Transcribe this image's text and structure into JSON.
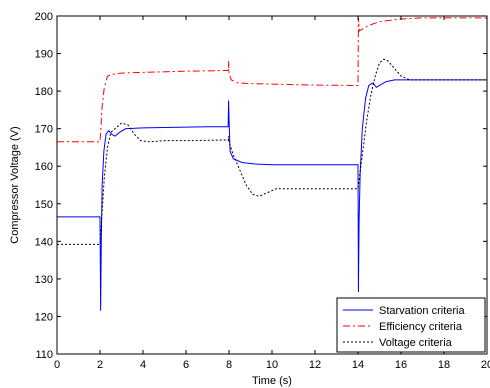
{
  "chart_data": {
    "type": "line",
    "title": "",
    "xlabel": "Time (s)",
    "ylabel": "Compressor Voltage (V)",
    "xlim": [
      0,
      20
    ],
    "ylim": [
      110,
      200
    ],
    "xticks": [
      0,
      2,
      4,
      6,
      8,
      10,
      12,
      14,
      16,
      18,
      20
    ],
    "yticks": [
      110,
      120,
      130,
      140,
      150,
      160,
      170,
      180,
      190,
      200
    ],
    "grid": false,
    "legend_position": "bottom-right",
    "series": [
      {
        "name": "Starvation criteria",
        "color": "#0000ff",
        "dash": "solid",
        "points": [
          [
            0,
            146.5
          ],
          [
            1.95,
            146.5
          ],
          [
            2.0,
            146.5
          ],
          [
            2.03,
            121.5
          ],
          [
            2.06,
            140
          ],
          [
            2.1,
            155
          ],
          [
            2.18,
            164
          ],
          [
            2.28,
            168.5
          ],
          [
            2.4,
            169.5
          ],
          [
            2.55,
            168.5
          ],
          [
            2.7,
            168
          ],
          [
            2.9,
            169
          ],
          [
            3.2,
            170
          ],
          [
            4,
            170.2
          ],
          [
            5,
            170.3
          ],
          [
            6,
            170.4
          ],
          [
            7,
            170.5
          ],
          [
            7.96,
            170.5
          ],
          [
            7.98,
            177.5
          ],
          [
            8.0,
            173
          ],
          [
            8.05,
            164
          ],
          [
            8.2,
            162
          ],
          [
            8.6,
            161
          ],
          [
            9.2,
            160.6
          ],
          [
            10,
            160.4
          ],
          [
            12,
            160.4
          ],
          [
            13.95,
            160.4
          ],
          [
            14.0,
            160.4
          ],
          [
            14.02,
            126.5
          ],
          [
            14.05,
            145
          ],
          [
            14.1,
            158
          ],
          [
            14.2,
            170
          ],
          [
            14.35,
            178
          ],
          [
            14.5,
            181.5
          ],
          [
            14.7,
            182.2
          ],
          [
            14.85,
            181
          ],
          [
            15.0,
            181.5
          ],
          [
            15.3,
            182.5
          ],
          [
            15.7,
            183
          ],
          [
            17,
            183
          ],
          [
            20,
            183
          ]
        ]
      },
      {
        "name": "Efficiency criteria",
        "color": "#ff0000",
        "dash": "dashdot",
        "points": [
          [
            0,
            166.5
          ],
          [
            1.98,
            166.5
          ],
          [
            2.0,
            166.5
          ],
          [
            2.04,
            170
          ],
          [
            2.1,
            176
          ],
          [
            2.2,
            181
          ],
          [
            2.35,
            184
          ],
          [
            2.6,
            184.5
          ],
          [
            3,
            184.8
          ],
          [
            4,
            185
          ],
          [
            6,
            185.3
          ],
          [
            7.97,
            185.5
          ],
          [
            7.98,
            188
          ],
          [
            8.0,
            185
          ],
          [
            8.1,
            183
          ],
          [
            8.4,
            182.2
          ],
          [
            9,
            182
          ],
          [
            12,
            181.6
          ],
          [
            13.95,
            181.5
          ],
          [
            14.0,
            181.5
          ],
          [
            14.02,
            199.5
          ],
          [
            14.06,
            196
          ],
          [
            14.2,
            196.5
          ],
          [
            14.5,
            197.5
          ],
          [
            15,
            198.5
          ],
          [
            16,
            199.2
          ],
          [
            17,
            199.5
          ],
          [
            20,
            199.5
          ]
        ]
      },
      {
        "name": "Voltage criteria",
        "color": "#000000",
        "dash": "dotted",
        "points": [
          [
            0,
            139.2
          ],
          [
            1.98,
            139.2
          ],
          [
            2.0,
            139.2
          ],
          [
            2.08,
            146
          ],
          [
            2.2,
            157
          ],
          [
            2.35,
            165
          ],
          [
            2.5,
            169
          ],
          [
            2.7,
            170
          ],
          [
            3.0,
            171.5
          ],
          [
            3.3,
            171
          ],
          [
            3.6,
            168.5
          ],
          [
            3.9,
            166.8
          ],
          [
            4.3,
            166.5
          ],
          [
            5,
            166.8
          ],
          [
            6,
            166.8
          ],
          [
            7.97,
            167
          ],
          [
            7.98,
            168
          ],
          [
            8.0,
            166.5
          ],
          [
            8.2,
            163
          ],
          [
            8.5,
            159
          ],
          [
            8.8,
            155
          ],
          [
            9.1,
            152.5
          ],
          [
            9.4,
            152
          ],
          [
            9.8,
            153
          ],
          [
            10.2,
            154
          ],
          [
            11,
            154
          ],
          [
            12,
            154
          ],
          [
            13.97,
            154
          ],
          [
            14.0,
            154
          ],
          [
            14.2,
            163
          ],
          [
            14.4,
            172
          ],
          [
            14.6,
            179
          ],
          [
            14.8,
            184
          ],
          [
            15.0,
            187.5
          ],
          [
            15.2,
            188.5
          ],
          [
            15.4,
            188
          ],
          [
            15.7,
            186
          ],
          [
            16.0,
            184
          ],
          [
            16.4,
            183
          ],
          [
            17,
            183
          ],
          [
            20,
            183
          ]
        ]
      }
    ]
  }
}
